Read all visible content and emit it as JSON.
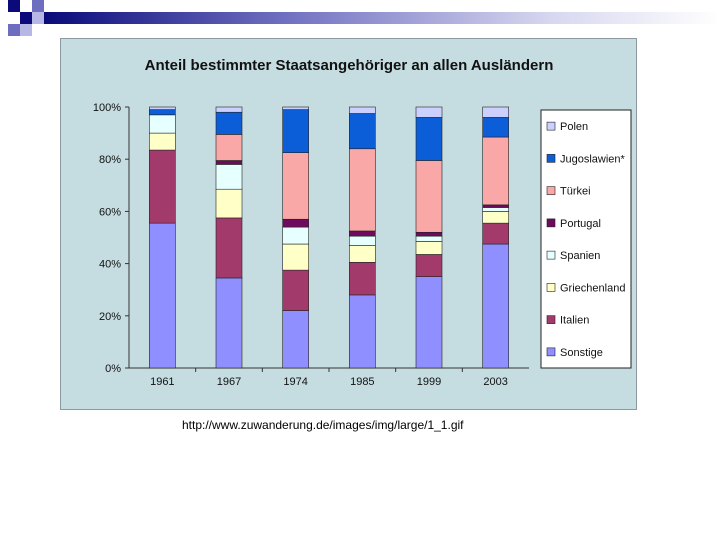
{
  "slide": {
    "source_url": "http://www.zuwanderung.de/images/img/large/1_1.gif"
  },
  "chart_data": {
    "type": "bar",
    "stacked": true,
    "title": "Anteil bestimmter Staatsangehöriger an allen Ausländern",
    "categories": [
      "1961",
      "1967",
      "1974",
      "1985",
      "1999",
      "2003"
    ],
    "ylim": [
      0,
      100
    ],
    "y_ticks": [
      "0%",
      "20%",
      "40%",
      "60%",
      "80%",
      "100%"
    ],
    "grid": false,
    "legend_position": "right",
    "series": [
      {
        "name": "Sonstige",
        "color": "#8f8fff",
        "values": [
          55.5,
          34.5,
          22,
          28,
          35,
          47.5
        ]
      },
      {
        "name": "Italien",
        "color": "#a33a6c",
        "values": [
          28,
          23,
          15.5,
          12.5,
          8.5,
          8
        ]
      },
      {
        "name": "Griechenland",
        "color": "#ffffc8",
        "values": [
          6.5,
          11,
          10,
          6.5,
          5,
          4.5
        ]
      },
      {
        "name": "Spanien",
        "color": "#e6ffff",
        "values": [
          7,
          9.5,
          6.5,
          3.5,
          2,
          1.5
        ]
      },
      {
        "name": "Portugal",
        "color": "#6e0b5e",
        "values": [
          0,
          1.5,
          3,
          2,
          1.5,
          1
        ]
      },
      {
        "name": "Türkei",
        "color": "#f9a7a7",
        "values": [
          0,
          10,
          25.5,
          31.5,
          27.5,
          26
        ]
      },
      {
        "name": "Jugoslawien*",
        "color": "#0c5ed8",
        "values": [
          2,
          8.5,
          16.5,
          13.5,
          16.5,
          7.5
        ]
      },
      {
        "name": "Polen",
        "color": "#ccd0ff",
        "values": [
          1,
          2,
          1,
          2.5,
          4,
          4
        ]
      }
    ]
  }
}
